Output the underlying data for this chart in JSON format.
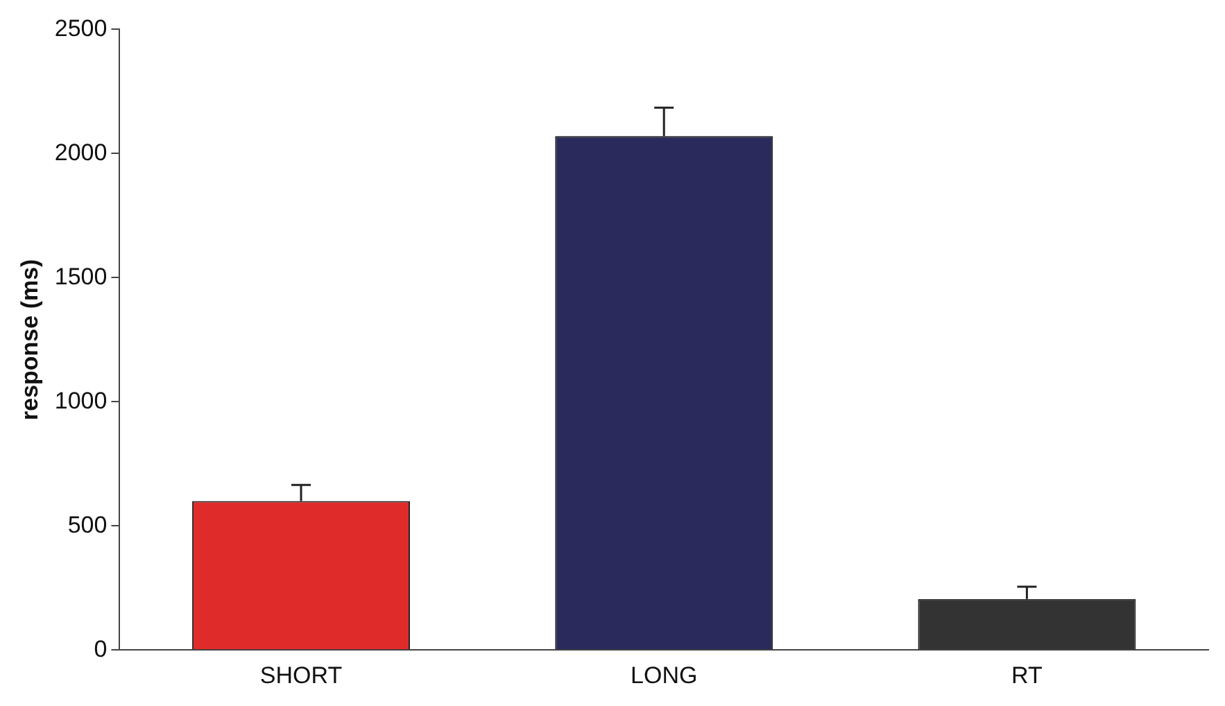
{
  "chart_data": {
    "type": "bar",
    "ylabel": "response (ms)",
    "categories": [
      "SHORT",
      "LONG",
      "RT"
    ],
    "values": [
      600,
      2070,
      205
    ],
    "errors": [
      65,
      115,
      50
    ],
    "colors": [
      "#e02b2b",
      "#2b2a5c",
      "#333333"
    ],
    "ylim": [
      0,
      2500
    ],
    "yticks": [
      0,
      500,
      1000,
      1500,
      2000,
      2500
    ],
    "grid": false,
    "legend": false
  }
}
